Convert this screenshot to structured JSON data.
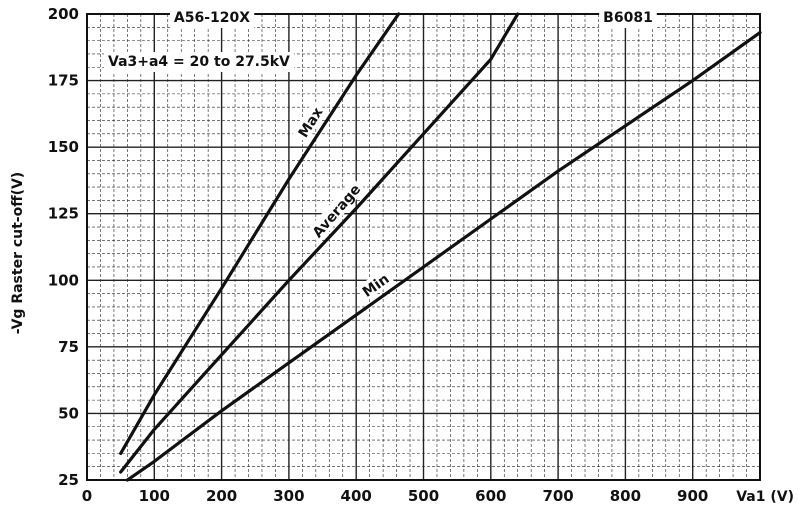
{
  "chart_data": {
    "type": "line",
    "title": "",
    "xlabel": "Va1 (V)",
    "ylabel": "-Vg Raster cut-off(V)",
    "xlim": [
      0,
      1000
    ],
    "ylim": [
      25,
      200
    ],
    "x_ticks": [
      0,
      100,
      200,
      300,
      400,
      500,
      600,
      700,
      800,
      900
    ],
    "y_ticks": [
      25,
      50,
      75,
      100,
      125,
      150,
      175,
      200
    ],
    "grid": true,
    "legend": "none",
    "annotations": {
      "tube_type": "A56-120X",
      "voltage_condition": "Va3+a4 = 20 to 27.5kV",
      "code": "B6081"
    },
    "series": [
      {
        "name": "Max",
        "x": [
          50,
          100,
          200,
          300,
          400,
          463
        ],
        "y": [
          35,
          57,
          97,
          138,
          177,
          200
        ]
      },
      {
        "name": "Average",
        "x": [
          50,
          100,
          200,
          300,
          400,
          500,
          600,
          640
        ],
        "y": [
          28,
          44,
          72,
          100,
          127,
          155,
          183,
          200
        ]
      },
      {
        "name": "Min",
        "x": [
          60,
          100,
          200,
          300,
          400,
          500,
          600,
          700,
          800,
          900,
          1000
        ],
        "y": [
          25,
          32,
          51,
          69,
          87,
          105,
          123,
          141,
          158,
          175,
          193
        ]
      }
    ]
  }
}
